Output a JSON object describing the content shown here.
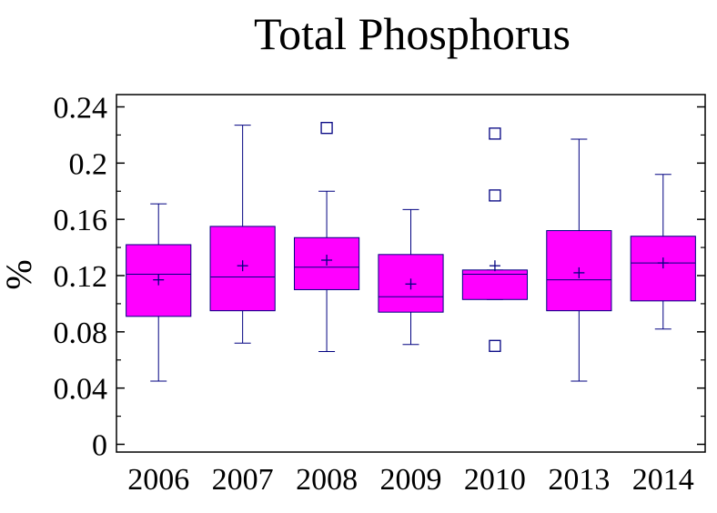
{
  "chart_data": {
    "type": "boxplot",
    "title": "Total Phosphorus",
    "ylabel": "%",
    "xlabel": "",
    "ylim": [
      0,
      0.244
    ],
    "yticks": [
      0,
      0.04,
      0.08,
      0.12,
      0.16,
      0.2,
      0.24
    ],
    "ytick_labels": [
      "0",
      "0.04",
      "0.08",
      "0.12",
      "0.16",
      "0.2",
      "0.24"
    ],
    "categories": [
      "2006",
      "2007",
      "2008",
      "2009",
      "2010",
      "2013",
      "2014"
    ],
    "boxes": [
      {
        "category": "2006",
        "whisker_low": 0.045,
        "q1": 0.091,
        "median": 0.121,
        "q3": 0.142,
        "whisker_high": 0.171,
        "mean": 0.117,
        "outliers": []
      },
      {
        "category": "2007",
        "whisker_low": 0.072,
        "q1": 0.095,
        "median": 0.119,
        "q3": 0.155,
        "whisker_high": 0.227,
        "mean": 0.127,
        "outliers": []
      },
      {
        "category": "2008",
        "whisker_low": 0.066,
        "q1": 0.11,
        "median": 0.126,
        "q3": 0.147,
        "whisker_high": 0.18,
        "mean": 0.131,
        "outliers": [
          0.225
        ]
      },
      {
        "category": "2009",
        "whisker_low": 0.071,
        "q1": 0.094,
        "median": 0.105,
        "q3": 0.135,
        "whisker_high": 0.167,
        "mean": 0.114,
        "outliers": []
      },
      {
        "category": "2010",
        "whisker_low": 0.103,
        "q1": 0.103,
        "median": 0.121,
        "q3": 0.124,
        "whisker_high": 0.124,
        "mean": 0.127,
        "outliers": [
          0.07,
          0.177,
          0.221
        ]
      },
      {
        "category": "2013",
        "whisker_low": 0.045,
        "q1": 0.095,
        "median": 0.117,
        "q3": 0.152,
        "whisker_high": 0.217,
        "mean": 0.122,
        "outliers": []
      },
      {
        "category": "2014",
        "whisker_low": 0.082,
        "q1": 0.102,
        "median": 0.129,
        "q3": 0.148,
        "whisker_high": 0.192,
        "mean": 0.129,
        "outliers": []
      }
    ],
    "colors": {
      "box_fill": "#ff00ff",
      "box_stroke": "#000080",
      "axis": "#000000"
    },
    "grid": false
  }
}
